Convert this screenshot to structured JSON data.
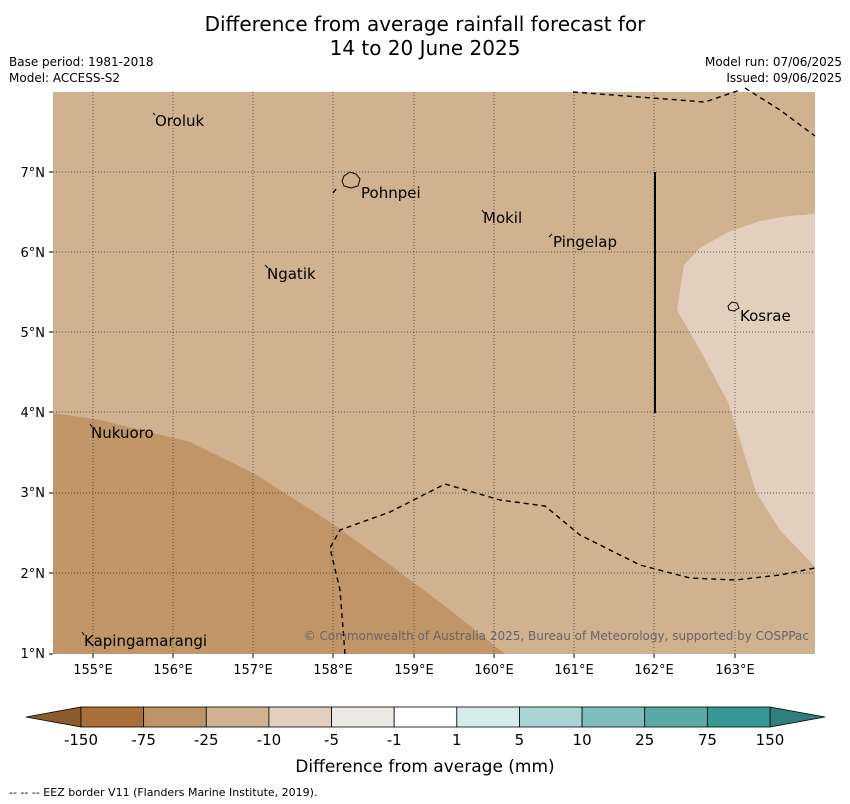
{
  "title_line1": "Difference from average rainfall forecast for",
  "title_line2": "14 to 20 June 2025",
  "base_period": "Base period: 1981-2018",
  "model": "Model: ACCESS-S2",
  "model_run": "Model run: 07/06/2025",
  "issued": "Issued: 09/06/2025",
  "copyright": "© Commonwealth of Australia 2025, Bureau of Meteorology, supported by COSPPac",
  "footer": "--  --  -- EEZ border V11 (Flanders Marine Institute, 2019).",
  "lon_ticks": [
    "155°E",
    "156°E",
    "157°E",
    "158°E",
    "159°E",
    "160°E",
    "161°E",
    "162°E",
    "163°E"
  ],
  "lat_ticks": [
    "1°N",
    "2°N",
    "3°N",
    "4°N",
    "5°N",
    "6°N",
    "7°N"
  ],
  "places": [
    "Oroluk",
    "Pohnpei",
    "Mokil",
    "Pingelap",
    "Ngatik",
    "Kosrae",
    "Nukuoro",
    "Kapingamarangi"
  ],
  "colorbar": {
    "label": "Difference from average (mm)",
    "ticks": [
      "-150",
      "-75",
      "-25",
      "-10",
      "-5",
      "-1",
      "1",
      "5",
      "10",
      "25",
      "75",
      "150"
    ],
    "colors": [
      "#a97139",
      "#bf936a",
      "#d0b190",
      "#e3cfbd",
      "#ece8e3",
      "#ffffff",
      "#d6eceb",
      "#a9d4d3",
      "#7fbebc",
      "#5aa9a7",
      "#369896"
    ],
    "under_color": "#8a5c2c",
    "over_color": "#2e7f7d"
  },
  "map_colors": {
    "base": "#d0b190",
    "dry": "#c09669",
    "wet": "#e3cfbd",
    "border": "#a0a0a0"
  }
}
